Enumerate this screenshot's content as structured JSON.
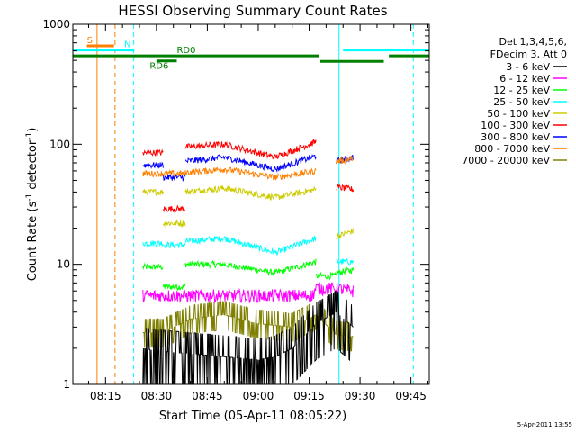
{
  "chart_data": {
    "type": "line",
    "title": "HESSI Observing Summary Count Rates",
    "xlabel": "Start Time (05-Apr-11 08:05:22)",
    "ylabel_main": "Count Rate (s",
    "ylabel_sup1": "-1",
    "ylabel_mid": " detector",
    "ylabel_sup2": "-1",
    "ylabel_end": ")",
    "y_scale": "log",
    "ylim": [
      1,
      1000
    ],
    "xlim_min": [
      485.37,
      590.4
    ],
    "x_ticks": [
      {
        "t": 495,
        "label": "08:15"
      },
      {
        "t": 510,
        "label": "08:30"
      },
      {
        "t": 525,
        "label": "08:45"
      },
      {
        "t": 540,
        "label": "09:00"
      },
      {
        "t": 555,
        "label": "09:15"
      },
      {
        "t": 570,
        "label": "09:30"
      },
      {
        "t": 585,
        "label": "09:45"
      }
    ],
    "y_ticks": [
      {
        "v": 1,
        "label": "1"
      },
      {
        "v": 10,
        "label": "10"
      },
      {
        "v": 100,
        "label": "100"
      },
      {
        "v": 1000,
        "label": "1000"
      }
    ],
    "legend_header": [
      "Det 1,3,4,5,6,",
      "FDecim 3, Att 0"
    ],
    "legend_placement": "right",
    "series": [
      {
        "name": "3 - 6 keV",
        "color": "#000000",
        "segments": [
          {
            "x": [
              506.0,
              510.0,
              520.0,
              530.0,
              540.0,
              545.0,
              550.0,
              557.0,
              563.0,
              568.0
            ],
            "y": [
              2.0,
              1.9,
              1.8,
              1.7,
              1.6,
              1.7,
              2.0,
              3.2,
              4.0,
              3.0
            ]
          }
        ]
      },
      {
        "name": "6 - 12 keV",
        "color": "#ff00ff",
        "segments": [
          {
            "x": [
              506.0,
              520.0,
              540.0,
              556.0,
              557.0,
              563.0,
              568.0
            ],
            "y": [
              5.5,
              5.5,
              5.5,
              5.5,
              6.3,
              6.3,
              6.0
            ]
          }
        ]
      },
      {
        "name": "12 - 25 keV",
        "color": "#00ff00",
        "segments": [
          {
            "x": [
              506.0,
              512.0
            ],
            "y": [
              9.5,
              9.5
            ]
          },
          {
            "x": [
              512.0,
              518.5
            ],
            "y": [
              6.5,
              6.5
            ]
          },
          {
            "x": [
              518.5,
              530.0,
              545.0,
              557.0
            ],
            "y": [
              10.0,
              10.0,
              8.5,
              10.5
            ]
          },
          {
            "x": [
              557.0,
              563.0
            ],
            "y": [
              8.0,
              8.0
            ]
          },
          {
            "x": [
              563.0,
              568.0
            ],
            "y": [
              8.5,
              9.0
            ]
          }
        ]
      },
      {
        "name": "25 - 50 keV",
        "color": "#00ffff",
        "segments": [
          {
            "x": [
              506.0,
              512.0
            ],
            "y": [
              15.0,
              15.0
            ]
          },
          {
            "x": [
              512.0,
              518.5
            ],
            "y": [
              14.5,
              14.5
            ]
          },
          {
            "x": [
              518.5,
              530.0,
              545.0,
              557.0
            ],
            "y": [
              15.5,
              16.5,
              12.5,
              16.5
            ]
          },
          {
            "x": [
              563.0,
              568.0
            ],
            "y": [
              10.5,
              10.5
            ]
          }
        ]
      },
      {
        "name": "50 - 100 keV",
        "color": "#cccc00",
        "segments": [
          {
            "x": [
              506.0,
              512.0
            ],
            "y": [
              40.0,
              40.0
            ]
          },
          {
            "x": [
              512.0,
              518.5
            ],
            "y": [
              22.0,
              22.0
            ]
          },
          {
            "x": [
              518.5,
              530.0,
              545.0,
              557.0
            ],
            "y": [
              40.0,
              43.0,
              36.0,
              42.0
            ]
          },
          {
            "x": [
              563.0,
              568.0
            ],
            "y": [
              17.0,
              19.0
            ]
          }
        ]
      },
      {
        "name": "100 - 300 keV",
        "color": "#ff0000",
        "segments": [
          {
            "x": [
              506.0,
              512.0
            ],
            "y": [
              85.0,
              85.0
            ]
          },
          {
            "x": [
              512.0,
              518.5
            ],
            "y": [
              29.0,
              29.0
            ]
          },
          {
            "x": [
              518.5,
              530.0,
              545.0,
              557.0
            ],
            "y": [
              95.0,
              100.0,
              78.0,
              105.0
            ]
          },
          {
            "x": [
              563.0,
              568.0
            ],
            "y": [
              44.0,
              42.0
            ]
          }
        ]
      },
      {
        "name": "300 - 800 keV",
        "color": "#0000ff",
        "segments": [
          {
            "x": [
              506.0,
              512.0
            ],
            "y": [
              67.0,
              67.0
            ]
          },
          {
            "x": [
              512.0,
              518.5
            ],
            "y": [
              53.0,
              53.0
            ]
          },
          {
            "x": [
              518.5,
              530.0,
              545.0,
              557.0
            ],
            "y": [
              72.0,
              78.0,
              62.0,
              80.0
            ]
          },
          {
            "x": [
              563.0,
              568.0
            ],
            "y": [
              72.0,
              78.0
            ]
          }
        ]
      },
      {
        "name": "800 - 7000 keV",
        "color": "#ff8000",
        "segments": [
          {
            "x": [
              506.0,
              512.0
            ],
            "y": [
              57.0,
              57.0
            ]
          },
          {
            "x": [
              512.0,
              518.5
            ],
            "y": [
              57.0,
              57.0
            ]
          },
          {
            "x": [
              518.5,
              530.0,
              545.0,
              557.0
            ],
            "y": [
              58.0,
              62.0,
              53.0,
              60.0
            ]
          },
          {
            "x": [
              563.0,
              568.0
            ],
            "y": [
              72.0,
              76.0
            ]
          }
        ]
      },
      {
        "name": "7000 - 20000 keV",
        "color": "#808000",
        "segments": [
          {
            "x": [
              506.0,
              512.0,
              520.0,
              530.0,
              540.0,
              550.0,
              557.0,
              563.0,
              568.0
            ],
            "y": [
              2.7,
              2.7,
              3.5,
              3.8,
              3.2,
              3.0,
              3.8,
              2.6,
              2.5
            ]
          }
        ]
      }
    ],
    "flags": [
      {
        "label": "S",
        "color": "#ff8000",
        "x": [
          489.5,
          497.5
        ],
        "y": 660,
        "label_x": 489.5
      },
      {
        "label": "N",
        "color": "#00ffff",
        "x": [
          485.37,
          503.5
        ],
        "y": 610,
        "label_x": 500.5
      },
      {
        "label": "",
        "color": "#00ffff",
        "x": [
          565.0,
          590.4
        ],
        "y": 610,
        "label_x": 565.0
      },
      {
        "label": "RD0",
        "color": "#008000",
        "x": [
          485.37,
          558.0
        ],
        "y": 545,
        "label_x": 516.0
      },
      {
        "label": "",
        "color": "#008000",
        "x": [
          558.3,
          577.0
        ],
        "y": 490,
        "label_x": 558.3
      },
      {
        "label": "",
        "color": "#008000",
        "x": [
          578.5,
          590.4
        ],
        "y": 545,
        "label_x": 578.5
      },
      {
        "label": "RD6",
        "color": "#008000",
        "x": [
          510.0,
          516.0
        ],
        "y": 495,
        "label_x": 508.0
      }
    ],
    "vlines": [
      {
        "t": 492.5,
        "color": "#ff8000",
        "dashed": false
      },
      {
        "t": 497.8,
        "color": "#ff8000",
        "dashed": true
      },
      {
        "t": 503.3,
        "color": "#00ffff",
        "dashed": true
      },
      {
        "t": 563.8,
        "color": "#00ffff",
        "dashed": false
      },
      {
        "t": 585.7,
        "color": "#00ffff",
        "dashed": true
      }
    ],
    "gaps": [
      {
        "t": 563.4
      },
      {
        "t": 563.8
      }
    ],
    "timestamp": "5-Apr-2011 13:55"
  }
}
